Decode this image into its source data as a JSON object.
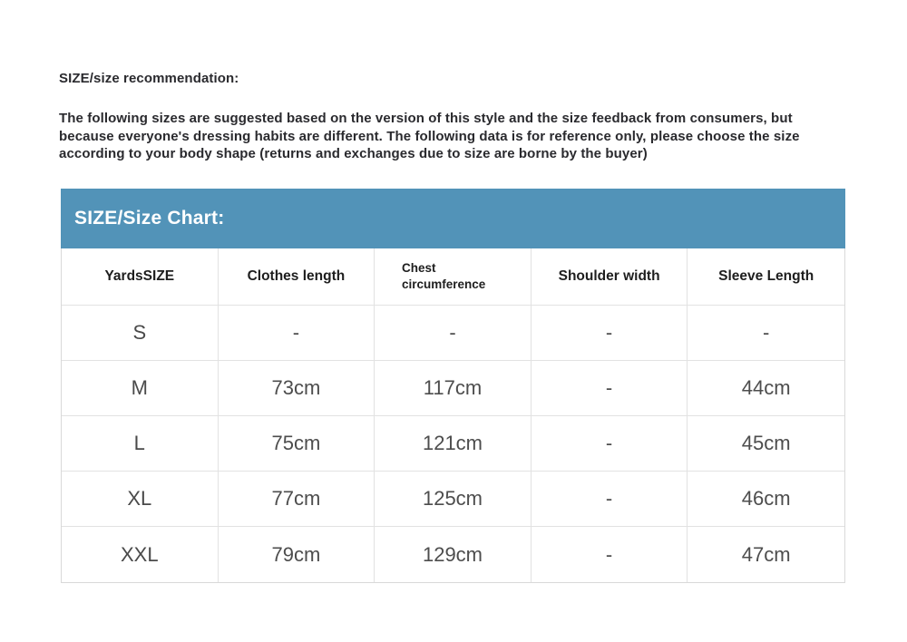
{
  "recommendation": {
    "title": "SIZE/size recommendation:",
    "body": "The following sizes are suggested based on the version of this style and the size feedback from consumers, but because everyone's dressing habits are different. The following data is for reference only, please choose the size according to your body shape (returns and exchanges due to size are borne by the buyer)"
  },
  "size_chart": {
    "title": "SIZE/Size Chart:",
    "columns": [
      "YardsSIZE",
      "Clothes length",
      "Chest circumference",
      "Shoulder width",
      "Sleeve Length"
    ],
    "rows": [
      [
        "S",
        "-",
        "-",
        "-",
        "-"
      ],
      [
        "M",
        "73cm",
        "117cm",
        "-",
        "44cm"
      ],
      [
        "L",
        "75cm",
        "121cm",
        "-",
        "45cm"
      ],
      [
        "XL",
        "77cm",
        "125cm",
        "-",
        "46cm"
      ],
      [
        "XXL",
        "79cm",
        "129cm",
        "-",
        "47cm"
      ]
    ],
    "colors": {
      "title_bar_background": "#5293b8",
      "title_bar_text": "#ffffff",
      "table_border": "#dcdcdc",
      "header_text": "#1e1e1e",
      "cell_text": "#4d4d4d"
    }
  }
}
